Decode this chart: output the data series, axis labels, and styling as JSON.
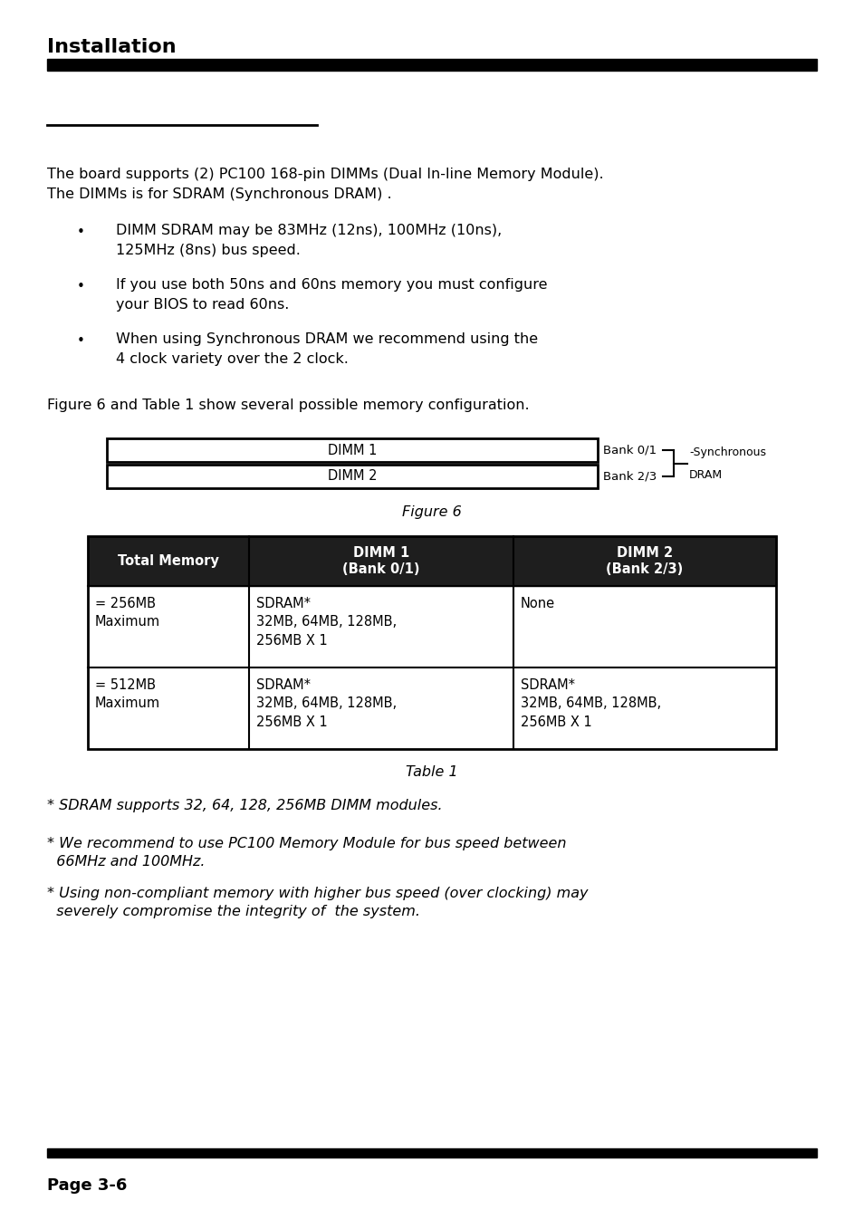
{
  "title": "Installation",
  "page": "Page 3-6",
  "bg_color": "#ffffff",
  "header_bar_color": "#000000",
  "short_line_color": "#000000",
  "body_text1a": "The board supports (2) PC100 168-pin DIMMs (Dual In-line Memory Module).",
  "body_text1b": "The DIMMs is for SDRAM (Synchronous DRAM) .",
  "bullets": [
    [
      "DIMM SDRAM may be 83MHz (12ns), 100MHz (10ns),",
      "125MHz (8ns) bus speed."
    ],
    [
      "If you use both 50ns and 60ns memory you must configure",
      "your BIOS to read 60ns."
    ],
    [
      "When using Synchronous DRAM we recommend using the",
      "4 clock variety over the 2 clock."
    ]
  ],
  "figure_intro": "Figure 6 and Table 1 show several possible memory configuration.",
  "figure_caption": "Figure 6",
  "figure_dimm1_label": "DIMM 1",
  "figure_dimm2_label": "DIMM 2",
  "figure_bank01": "Bank 0/1",
  "figure_bank23": "Bank 2/3",
  "figure_sync_label1": "-Synchronous",
  "figure_sync_label2": "DRAM",
  "table_caption": "Table 1",
  "table_col_headers": [
    [
      "Total Memory"
    ],
    [
      "DIMM 1",
      "(Bank 0/1)"
    ],
    [
      "DIMM 2",
      "(Bank 2/3)"
    ]
  ],
  "table_header_bg": "#1e1e1e",
  "table_header_fg": "#ffffff",
  "table_row1_col0": [
    "= 256MB",
    "Maximum"
  ],
  "table_row1_col1": [
    "SDRAM*",
    "32MB, 64MB, 128MB,",
    "256MB X 1"
  ],
  "table_row1_col2": [
    "None"
  ],
  "table_row2_col0": [
    "= 512MB",
    "Maximum"
  ],
  "table_row2_col1": [
    "SDRAM*",
    "32MB, 64MB, 128MB,",
    "256MB X 1"
  ],
  "table_row2_col2": [
    "SDRAM*",
    "32MB, 64MB, 128MB,",
    "256MB X 1"
  ],
  "footnote1": "* SDRAM supports 32, 64, 128, 256MB DIMM modules.",
  "footnote2a": "* We recommend to use PC100 Memory Module for bus speed between",
  "footnote2b": "  66MHz and 100MHz.",
  "footnote3a": "* Using non-compliant memory with higher bus speed (over clocking) may",
  "footnote3b": "  severely compromise the integrity of  the system."
}
